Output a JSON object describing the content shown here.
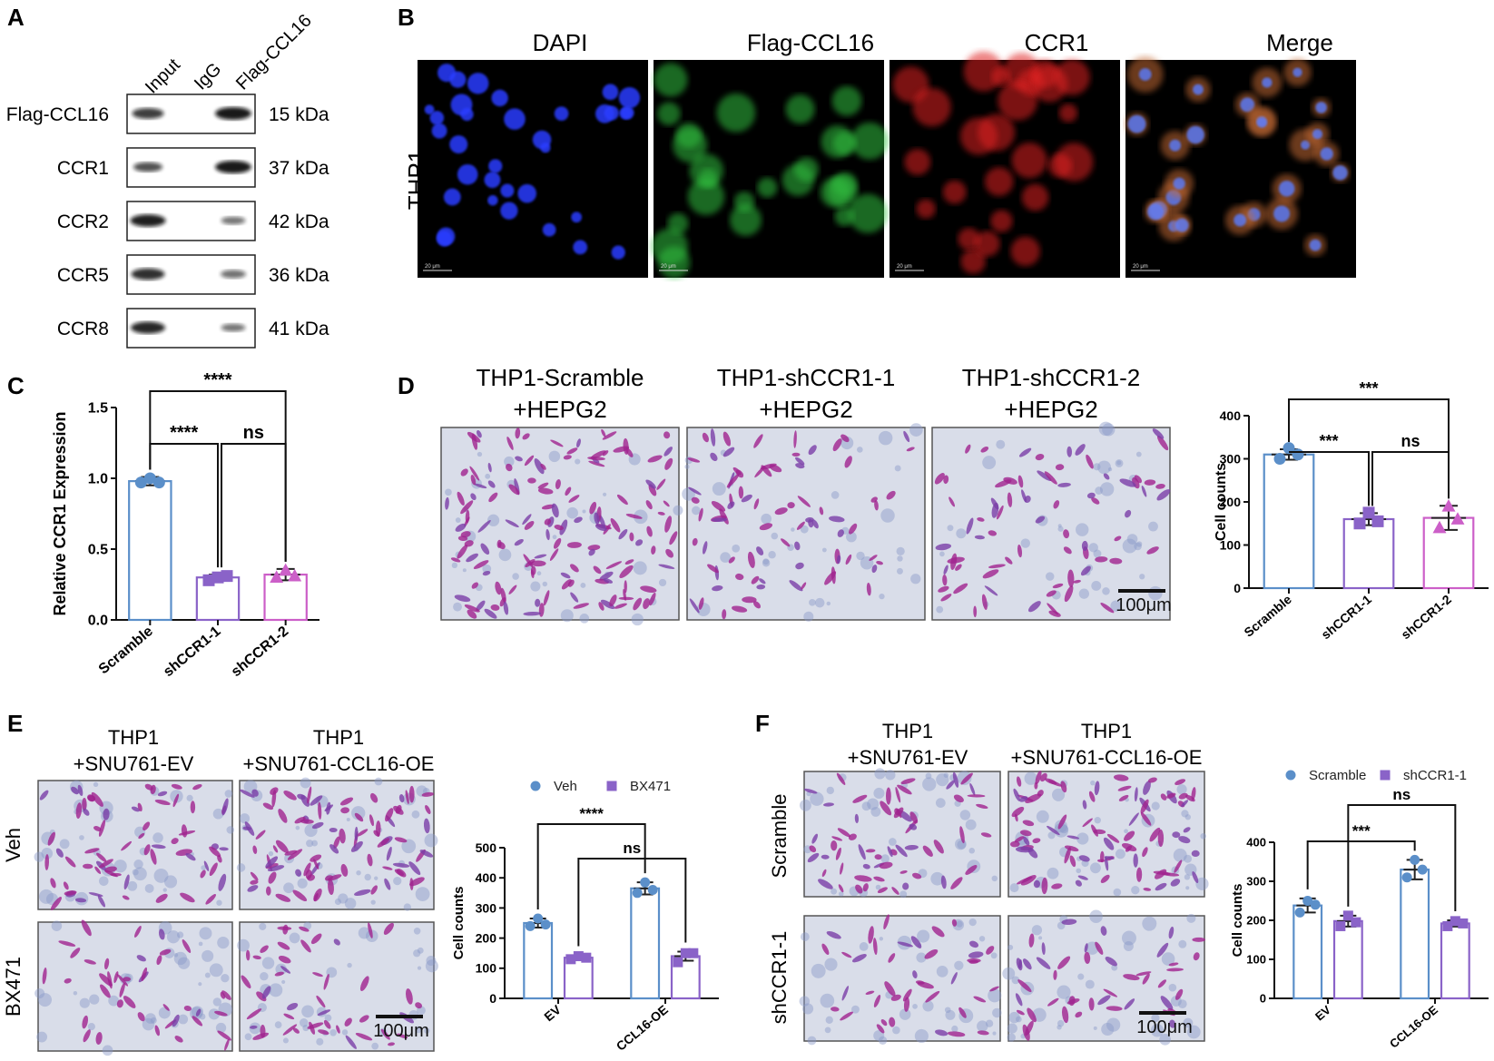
{
  "panels": {
    "A": {
      "letter": "A",
      "lanes": [
        "Input",
        "IgG",
        "Flag-CCL16"
      ],
      "blots": [
        {
          "protein": "Flag-CCL16",
          "size": "15 kDa",
          "bands": [
            0.75,
            0.0,
            1.0
          ]
        },
        {
          "protein": "CCR1",
          "size": "37 kDa",
          "bands": [
            0.6,
            0.0,
            1.0
          ]
        },
        {
          "protein": "CCR2",
          "size": "42 kDa",
          "bands": [
            0.95,
            0.0,
            0.35
          ]
        },
        {
          "protein": "CCR5",
          "size": "36 kDa",
          "bands": [
            0.85,
            0.0,
            0.4
          ]
        },
        {
          "protein": "CCR8",
          "size": "41 kDa",
          "bands": [
            0.9,
            0.0,
            0.35
          ]
        }
      ]
    },
    "B": {
      "letter": "B",
      "row_label": "THP1",
      "channels": [
        {
          "title": "DAPI",
          "color": "#2a3cff"
        },
        {
          "title": "Flag-CCL16",
          "color": "#30c040"
        },
        {
          "title": "CCR1",
          "color": "#e02020"
        },
        {
          "title": "Merge",
          "color": "#b06a40"
        }
      ],
      "scale_text": "20 μm"
    },
    "C": {
      "letter": "C"
    },
    "D": {
      "letter": "D",
      "images": [
        {
          "title1": "THP1-Scramble",
          "title2": "+HEPG2",
          "density": 0.9
        },
        {
          "title1": "THP1-shCCR1-1",
          "title2": "+HEPG2",
          "density": 0.5
        },
        {
          "title1": "THP1-shCCR1-2",
          "title2": "+HEPG2",
          "density": 0.45
        }
      ],
      "scale_bar": "100μm"
    },
    "E": {
      "letter": "E",
      "col_titles": [
        {
          "line1": "THP1",
          "line2": "+SNU761-EV"
        },
        {
          "line1": "THP1",
          "line2": "+SNU761-CCL16-OE"
        }
      ],
      "row_labels": [
        "Veh",
        "BX471"
      ],
      "densities": [
        [
          0.75,
          1.0
        ],
        [
          0.45,
          0.5
        ]
      ],
      "scale_bar": "100μm"
    },
    "F": {
      "letter": "F",
      "col_titles": [
        {
          "line1": "THP1",
          "line2": "+SNU761-EV"
        },
        {
          "line1": "THP1",
          "line2": "+SNU761-CCL16-OE"
        }
      ],
      "row_labels": [
        "Scramble",
        "shCCR1-1"
      ],
      "densities": [
        [
          0.7,
          1.0
        ],
        [
          0.45,
          0.5
        ]
      ],
      "scale_bar": "100μm"
    }
  },
  "chart_data": [
    {
      "panel": "C",
      "type": "bar",
      "ylabel": "Relative CCR1 Expression",
      "categories": [
        "Scramble",
        "shCCR1-1",
        "shCCR1-2"
      ],
      "values": [
        0.98,
        0.3,
        0.32
      ],
      "errors": [
        0.03,
        0.02,
        0.04
      ],
      "points": [
        [
          0.97,
          1.0,
          0.97
        ],
        [
          0.28,
          0.3,
          0.31
        ],
        [
          0.3,
          0.35,
          0.31
        ]
      ],
      "colors": [
        "#5b8fc9",
        "#8a63c8",
        "#cc5fc8"
      ],
      "markers": [
        "circle",
        "square",
        "triangle"
      ],
      "ylim": [
        0,
        1.5
      ],
      "yticks": [
        "0.0",
        "0.5",
        "1.0",
        "1.5"
      ],
      "significance": [
        {
          "from": 0,
          "to": 1,
          "label": "****"
        },
        {
          "from": 1,
          "to": 2,
          "label": "ns"
        },
        {
          "from": 0,
          "to": 2,
          "label": "****"
        }
      ]
    },
    {
      "panel": "D",
      "type": "bar",
      "ylabel": "Cell counts",
      "categories": [
        "Scramble",
        "shCCR1-1",
        "shCCR1-2"
      ],
      "values": [
        310,
        160,
        163
      ],
      "errors": [
        12,
        14,
        28
      ],
      "points": [
        [
          300,
          325,
          310
        ],
        [
          150,
          175,
          155
        ],
        [
          140,
          190,
          160
        ]
      ],
      "colors": [
        "#5b8fc9",
        "#8a63c8",
        "#cc5fc8"
      ],
      "markers": [
        "circle",
        "square",
        "triangle"
      ],
      "ylim": [
        0,
        400
      ],
      "yticks": [
        "0",
        "100",
        "200",
        "300",
        "400"
      ],
      "significance": [
        {
          "from": 0,
          "to": 1,
          "label": "***"
        },
        {
          "from": 1,
          "to": 2,
          "label": "ns"
        },
        {
          "from": 0,
          "to": 2,
          "label": "***"
        }
      ]
    },
    {
      "panel": "E",
      "type": "bar",
      "ylabel": "Cell counts",
      "categories": [
        "EV",
        "CCL16-OE"
      ],
      "series": [
        {
          "name": "Veh",
          "values": [
            250,
            365
          ],
          "errors": [
            15,
            20
          ],
          "points": [
            [
              240,
              265,
              245
            ],
            [
              350,
              385,
              360
            ]
          ],
          "color": "#5b8fc9",
          "marker": "circle"
        },
        {
          "name": "BX471",
          "values": [
            135,
            140
          ],
          "errors": [
            8,
            15
          ],
          "points": [
            [
              130,
              140,
              135
            ],
            [
              120,
              150,
              150
            ]
          ],
          "color": "#8a63c8",
          "marker": "square"
        }
      ],
      "ylim": [
        0,
        500
      ],
      "yticks": [
        "0",
        "100",
        "200",
        "300",
        "400",
        "500"
      ],
      "significance": [
        {
          "a": [
            0,
            0
          ],
          "b": [
            1,
            0
          ],
          "label": "****"
        },
        {
          "a": [
            0,
            1
          ],
          "b": [
            1,
            1
          ],
          "label": "ns"
        }
      ],
      "legend": "top"
    },
    {
      "panel": "F",
      "type": "bar",
      "ylabel": "Cell counts",
      "categories": [
        "EV",
        "CCL16-OE"
      ],
      "series": [
        {
          "name": "Scramble",
          "values": [
            238,
            330
          ],
          "errors": [
            18,
            25
          ],
          "points": [
            [
              220,
              250,
              240
            ],
            [
              310,
              355,
              330
            ]
          ],
          "color": "#5b8fc9",
          "marker": "circle"
        },
        {
          "name": "shCCR1-1",
          "values": [
            198,
            192
          ],
          "errors": [
            14,
            8
          ],
          "points": [
            [
              185,
              212,
              195
            ],
            [
              185,
              198,
              192
            ]
          ],
          "color": "#8a63c8",
          "marker": "square"
        }
      ],
      "ylim": [
        0,
        400
      ],
      "yticks": [
        "0",
        "100",
        "200",
        "300",
        "400"
      ],
      "significance": [
        {
          "a": [
            0,
            0
          ],
          "b": [
            1,
            0
          ],
          "label": "***"
        },
        {
          "a": [
            0,
            1
          ],
          "b": [
            1,
            1
          ],
          "label": "ns"
        }
      ],
      "legend": "top"
    }
  ]
}
